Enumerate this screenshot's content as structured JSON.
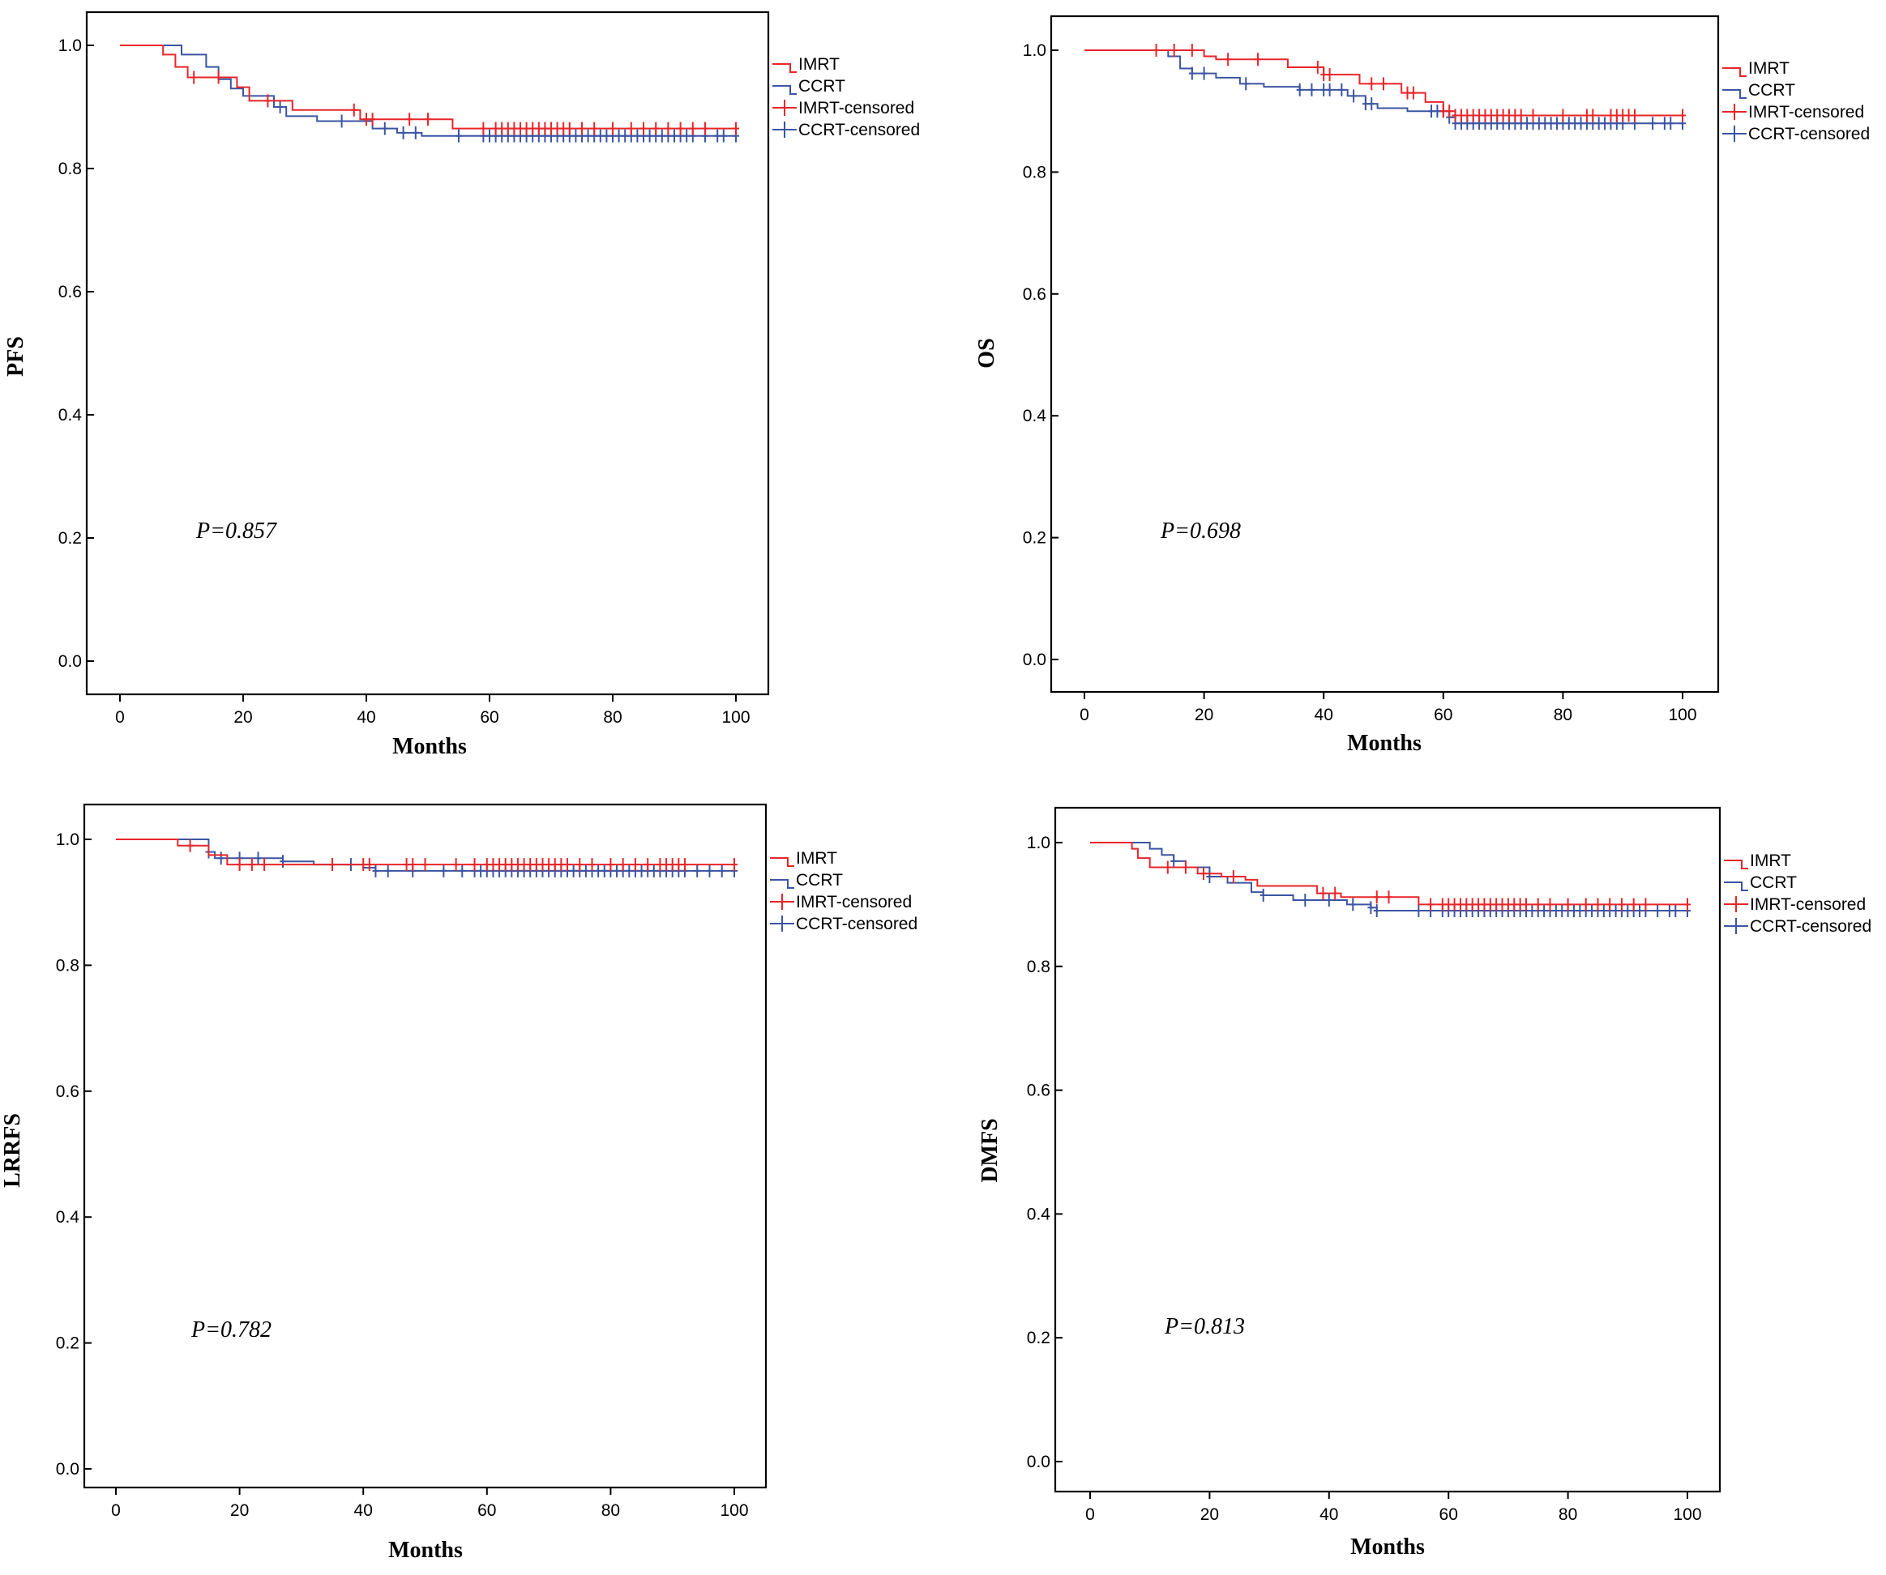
{
  "colors": {
    "IMRT": "#e8262a",
    "CCRT": "#3b55a3"
  },
  "chart_data": [
    {
      "type": "line",
      "subtype": "kaplan-meier",
      "ylabel": "PFS",
      "xlabel": "Months",
      "p_value": "P=0.857",
      "xlim": [
        0,
        100
      ],
      "ylim": [
        0,
        1.0
      ],
      "xticks": [
        "0",
        "20",
        "40",
        "60",
        "80",
        "100"
      ],
      "yticks": [
        "0.0",
        "0.2",
        "0.4",
        "0.6",
        "0.8",
        "1.0"
      ],
      "legend": [
        "IMRT",
        "CCRT",
        "IMRT-censored",
        "CCRT-censored"
      ],
      "series": [
        {
          "name": "IMRT",
          "steps": [
            [
              0,
              1.0
            ],
            [
              7,
              0.985
            ],
            [
              9,
              0.965
            ],
            [
              11,
              0.948
            ],
            [
              19,
              0.932
            ],
            [
              21,
              0.91
            ],
            [
              28,
              0.895
            ],
            [
              39,
              0.88
            ],
            [
              54,
              0.865
            ],
            [
              100,
              0.865
            ]
          ],
          "censored": [
            12,
            16,
            24,
            38,
            40,
            41,
            47,
            50,
            59,
            61,
            62,
            63,
            64,
            65,
            66,
            67,
            68,
            69,
            70,
            71,
            72,
            73,
            75,
            77,
            80,
            83,
            85,
            87,
            89,
            91,
            93,
            95,
            100
          ]
        },
        {
          "name": "CCRT",
          "steps": [
            [
              0,
              1.0
            ],
            [
              10,
              0.985
            ],
            [
              14,
              0.965
            ],
            [
              16,
              0.945
            ],
            [
              18,
              0.93
            ],
            [
              20,
              0.918
            ],
            [
              25,
              0.9
            ],
            [
              27,
              0.885
            ],
            [
              32,
              0.877
            ],
            [
              41,
              0.865
            ],
            [
              45,
              0.858
            ],
            [
              49,
              0.853
            ],
            [
              100,
              0.853
            ]
          ],
          "censored": [
            26,
            36,
            43,
            46,
            48,
            55,
            59,
            60,
            61,
            62,
            63,
            64,
            65,
            66,
            67,
            68,
            69,
            70,
            71,
            72,
            73,
            74,
            75,
            76,
            77,
            78,
            79,
            80,
            81,
            82,
            83,
            84,
            85,
            86,
            87,
            88,
            89,
            90,
            91,
            92,
            93,
            95,
            97,
            98,
            100
          ]
        }
      ]
    },
    {
      "type": "line",
      "subtype": "kaplan-meier",
      "ylabel": "OS",
      "xlabel": "Months",
      "p_value": "P=0.698",
      "xlim": [
        0,
        100
      ],
      "ylim": [
        0,
        1.0
      ],
      "xticks": [
        "0",
        "20",
        "40",
        "60",
        "80",
        "100"
      ],
      "yticks": [
        "0.0",
        "0.2",
        "0.4",
        "0.6",
        "0.8",
        "1.0"
      ],
      "legend": [
        "IMRT",
        "CCRT",
        "IMRT-censored",
        "CCRT-censored"
      ],
      "series": [
        {
          "name": "IMRT",
          "steps": [
            [
              0,
              1.0
            ],
            [
              20,
              0.99
            ],
            [
              22,
              0.985
            ],
            [
              34,
              0.972
            ],
            [
              40,
              0.96
            ],
            [
              46,
              0.945
            ],
            [
              53,
              0.93
            ],
            [
              57,
              0.915
            ],
            [
              60,
              0.9
            ],
            [
              62,
              0.893
            ],
            [
              100,
              0.893
            ]
          ],
          "censored": [
            12,
            15,
            18,
            24,
            29,
            39,
            40,
            41,
            48,
            50,
            54,
            55,
            60,
            61,
            62,
            63,
            64,
            65,
            66,
            67,
            68,
            69,
            70,
            71,
            72,
            73,
            75,
            80,
            84,
            85,
            88,
            89,
            90,
            91,
            92,
            100
          ]
        },
        {
          "name": "CCRT",
          "steps": [
            [
              0,
              1.0
            ],
            [
              14,
              0.99
            ],
            [
              16,
              0.97
            ],
            [
              18,
              0.962
            ],
            [
              22,
              0.955
            ],
            [
              26,
              0.945
            ],
            [
              30,
              0.94
            ],
            [
              36,
              0.935
            ],
            [
              44,
              0.925
            ],
            [
              47,
              0.912
            ],
            [
              49,
              0.905
            ],
            [
              54,
              0.9
            ],
            [
              61,
              0.89
            ],
            [
              62,
              0.88
            ],
            [
              100,
              0.88
            ]
          ],
          "censored": [
            18,
            20,
            27,
            36,
            38,
            40,
            41,
            43,
            45,
            47,
            48,
            58,
            59,
            60,
            61,
            62,
            63,
            64,
            65,
            66,
            67,
            68,
            69,
            70,
            71,
            72,
            73,
            74,
            75,
            76,
            77,
            78,
            79,
            80,
            81,
            82,
            83,
            84,
            85,
            86,
            87,
            88,
            89,
            90,
            92,
            95,
            97,
            98,
            100
          ]
        }
      ]
    },
    {
      "type": "line",
      "subtype": "kaplan-meier",
      "ylabel": "LRRFS",
      "xlabel": "Months",
      "p_value": "P=0.782",
      "xlim": [
        0,
        100
      ],
      "ylim": [
        0,
        1.0
      ],
      "xticks": [
        "0",
        "20",
        "40",
        "60",
        "80",
        "100"
      ],
      "yticks": [
        "0.0",
        "0.2",
        "0.4",
        "0.6",
        "0.8",
        "1.0"
      ],
      "legend": [
        "IMRT",
        "CCRT",
        "IMRT-censored",
        "CCRT-censored"
      ],
      "series": [
        {
          "name": "IMRT",
          "steps": [
            [
              0,
              1.0
            ],
            [
              10,
              0.99
            ],
            [
              15,
              0.975
            ],
            [
              18,
              0.96
            ],
            [
              100,
              0.96
            ]
          ],
          "censored": [
            12,
            20,
            22,
            24,
            35,
            40,
            41,
            47,
            48,
            50,
            55,
            58,
            60,
            61,
            62,
            63,
            64,
            65,
            66,
            67,
            68,
            69,
            70,
            71,
            72,
            73,
            75,
            77,
            80,
            82,
            84,
            86,
            88,
            89,
            90,
            91,
            92,
            100
          ]
        },
        {
          "name": "CCRT",
          "steps": [
            [
              0,
              1.0
            ],
            [
              15,
              0.98
            ],
            [
              16,
              0.97
            ],
            [
              27,
              0.965
            ],
            [
              32,
              0.96
            ],
            [
              40,
              0.955
            ],
            [
              42,
              0.95
            ],
            [
              100,
              0.95
            ]
          ],
          "censored": [
            15,
            17,
            20,
            23,
            27,
            35,
            38,
            42,
            44,
            48,
            53,
            56,
            58,
            59,
            60,
            61,
            62,
            63,
            64,
            65,
            66,
            67,
            68,
            69,
            70,
            71,
            72,
            73,
            74,
            75,
            76,
            77,
            78,
            79,
            80,
            81,
            82,
            83,
            84,
            85,
            86,
            87,
            88,
            89,
            90,
            91,
            92,
            94,
            96,
            98,
            100
          ]
        }
      ]
    },
    {
      "type": "line",
      "subtype": "kaplan-meier",
      "ylabel": "DMFS",
      "xlabel": "Months",
      "p_value": "P=0.813",
      "xlim": [
        0,
        100
      ],
      "ylim": [
        0,
        1.0
      ],
      "xticks": [
        "0",
        "20",
        "40",
        "60",
        "80",
        "100"
      ],
      "yticks": [
        "0.0",
        "0.2",
        "0.4",
        "0.6",
        "0.8",
        "1.0"
      ],
      "legend": [
        "IMRT",
        "CCRT",
        "IMRT-censored",
        "CCRT-censored"
      ],
      "series": [
        {
          "name": "IMRT",
          "steps": [
            [
              0,
              1.0
            ],
            [
              7,
              0.99
            ],
            [
              8,
              0.975
            ],
            [
              10,
              0.96
            ],
            [
              18,
              0.95
            ],
            [
              22,
              0.945
            ],
            [
              26,
              0.94
            ],
            [
              28,
              0.93
            ],
            [
              38,
              0.918
            ],
            [
              42,
              0.912
            ],
            [
              55,
              0.9
            ],
            [
              100,
              0.9
            ]
          ],
          "censored": [
            13,
            16,
            19,
            24,
            39,
            41,
            48,
            50,
            57,
            59,
            60,
            61,
            62,
            63,
            64,
            65,
            66,
            67,
            68,
            69,
            70,
            71,
            72,
            73,
            75,
            77,
            80,
            83,
            85,
            87,
            89,
            91,
            93,
            100
          ]
        },
        {
          "name": "CCRT",
          "steps": [
            [
              0,
              1.0
            ],
            [
              10,
              0.99
            ],
            [
              12,
              0.98
            ],
            [
              14,
              0.97
            ],
            [
              16,
              0.96
            ],
            [
              20,
              0.945
            ],
            [
              23,
              0.935
            ],
            [
              27,
              0.92
            ],
            [
              29,
              0.915
            ],
            [
              34,
              0.907
            ],
            [
              43,
              0.9
            ],
            [
              47,
              0.895
            ],
            [
              48,
              0.89
            ],
            [
              100,
              0.89
            ]
          ],
          "censored": [
            14,
            20,
            29,
            36,
            40,
            44,
            47,
            48,
            55,
            57,
            59,
            60,
            61,
            62,
            63,
            64,
            65,
            66,
            67,
            68,
            69,
            70,
            71,
            72,
            73,
            74,
            75,
            76,
            77,
            78,
            79,
            80,
            81,
            82,
            83,
            84,
            85,
            86,
            87,
            88,
            89,
            90,
            91,
            92,
            93,
            95,
            97,
            98,
            100
          ]
        }
      ]
    }
  ]
}
